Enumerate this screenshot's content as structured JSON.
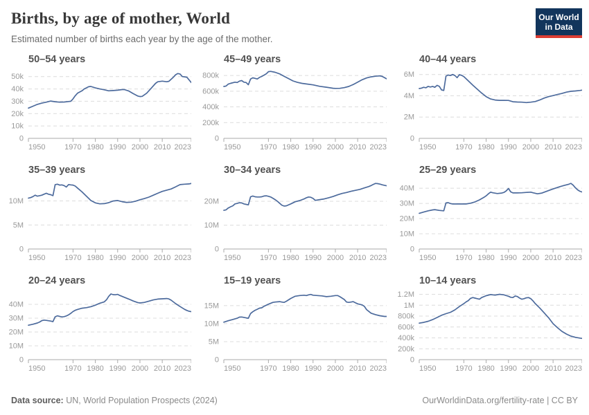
{
  "header": {
    "title": "Births, by age of mother, World",
    "subtitle": "Estimated number of births each year by the age of the mother."
  },
  "logo": {
    "line1": "Our World",
    "line2": "in Data"
  },
  "footer": {
    "source_label": "Data source:",
    "source_text": " UN, World Population Prospects (2024)",
    "url": "OurWorldinData.org/fertility-rate",
    "license": " | CC BY"
  },
  "colors": {
    "line": "#4c6a9c",
    "grid": "#dcdcdc",
    "axis": "#a9a9a9",
    "tick_text": "#999999",
    "logo_bg": "#12355c",
    "logo_bar": "#dc3d33"
  },
  "x_axis": {
    "range": [
      1950,
      2023
    ],
    "ticks": [
      {
        "v": 1950,
        "label": "1950",
        "anchor": "start"
      },
      {
        "v": 1970,
        "label": "1970",
        "anchor": "middle"
      },
      {
        "v": 1980,
        "label": "1980",
        "anchor": "middle"
      },
      {
        "v": 1990,
        "label": "1990",
        "anchor": "middle"
      },
      {
        "v": 2000,
        "label": "2000",
        "anchor": "middle"
      },
      {
        "v": 2010,
        "label": "2010",
        "anchor": "middle"
      },
      {
        "v": 2023,
        "label": "2023",
        "anchor": "end"
      }
    ]
  },
  "chart_data": [
    {
      "type": "line",
      "title": "50–54 years",
      "unit": "thousands",
      "ylim": [
        0,
        56
      ],
      "y_ticks": [
        {
          "v": 0,
          "label": "0"
        },
        {
          "v": 10,
          "label": "10k"
        },
        {
          "v": 20,
          "label": "20k"
        },
        {
          "v": 30,
          "label": "30k"
        },
        {
          "v": 40,
          "label": "40k"
        },
        {
          "v": 50,
          "label": "50k"
        }
      ],
      "x": [
        1950,
        1952,
        1954,
        1956,
        1958,
        1960,
        1962,
        1964,
        1966,
        1968,
        1969,
        1970,
        1971,
        1972,
        1974,
        1975,
        1977,
        1978,
        1980,
        1982,
        1984,
        1986,
        1988,
        1990,
        1992,
        1993,
        1995,
        1997,
        1999,
        2000,
        2001,
        2003,
        2005,
        2007,
        2008,
        2010,
        2012,
        2013,
        2015,
        2016,
        2017,
        2018,
        2019,
        2020,
        2021,
        2023
      ],
      "y": [
        24.5,
        26,
        27.5,
        28.5,
        29.3,
        30.2,
        29.6,
        29.3,
        29.4,
        29.8,
        30,
        32,
        34.5,
        36.5,
        38.5,
        40,
        41.8,
        42,
        40.8,
        40,
        39.3,
        38.5,
        38.7,
        39,
        39.5,
        39.5,
        38.3,
        36.2,
        34.3,
        33.8,
        34,
        36.5,
        40.5,
        44.5,
        45.8,
        46.3,
        45.8,
        46.2,
        49.5,
        51.5,
        52.5,
        52,
        50,
        49.8,
        49.5,
        45.2
      ]
    },
    {
      "type": "line",
      "title": "45–49 years",
      "unit": "thousands",
      "ylim": [
        0,
        880
      ],
      "y_ticks": [
        {
          "v": 0,
          "label": "0"
        },
        {
          "v": 200,
          "label": "200k"
        },
        {
          "v": 400,
          "label": "400k"
        },
        {
          "v": 600,
          "label": "600k"
        },
        {
          "v": 800,
          "label": "800k"
        }
      ],
      "x": [
        1950,
        1951,
        1952,
        1953,
        1955,
        1956,
        1957,
        1958,
        1959,
        1960,
        1961,
        1962,
        1963,
        1964,
        1965,
        1966,
        1967,
        1969,
        1970,
        1971,
        1973,
        1975,
        1977,
        1979,
        1981,
        1983,
        1985,
        1987,
        1990,
        1993,
        1996,
        1999,
        2000,
        2002,
        2004,
        2006,
        2008,
        2010,
        2012,
        2014,
        2016,
        2018,
        2020,
        2021,
        2023
      ],
      "y": [
        660,
        665,
        690,
        700,
        715,
        710,
        728,
        735,
        715,
        710,
        682,
        755,
        770,
        763,
        755,
        775,
        788,
        820,
        848,
        852,
        840,
        820,
        790,
        760,
        730,
        712,
        700,
        692,
        680,
        662,
        650,
        637,
        635,
        636,
        645,
        660,
        685,
        715,
        745,
        768,
        782,
        790,
        795,
        788,
        757
      ]
    },
    {
      "type": "line",
      "title": "40–44 years",
      "unit": "millions",
      "ylim": [
        0,
        6.5
      ],
      "y_ticks": [
        {
          "v": 0,
          "label": "0"
        },
        {
          "v": 2,
          "label": "2M"
        },
        {
          "v": 4,
          "label": "4M"
        },
        {
          "v": 6,
          "label": "6M"
        }
      ],
      "x": [
        1950,
        1951,
        1952,
        1953,
        1954,
        1955,
        1956,
        1957,
        1958,
        1959,
        1960,
        1961,
        1962,
        1963,
        1964,
        1965,
        1966,
        1967,
        1968,
        1969,
        1970,
        1972,
        1974,
        1976,
        1978,
        1980,
        1982,
        1984,
        1986,
        1988,
        1990,
        1992,
        1994,
        1996,
        1998,
        2000,
        2002,
        2004,
        2006,
        2008,
        2010,
        2012,
        2014,
        2016,
        2018,
        2020,
        2022,
        2023
      ],
      "y": [
        4.68,
        4.72,
        4.8,
        4.75,
        4.88,
        4.82,
        4.88,
        4.8,
        4.98,
        4.88,
        4.55,
        4.5,
        5.85,
        5.95,
        5.9,
        6.0,
        5.9,
        5.7,
        5.98,
        5.92,
        5.8,
        5.4,
        5.0,
        4.62,
        4.25,
        3.92,
        3.7,
        3.6,
        3.57,
        3.57,
        3.56,
        3.44,
        3.41,
        3.4,
        3.36,
        3.4,
        3.46,
        3.6,
        3.78,
        3.92,
        4.02,
        4.12,
        4.22,
        4.34,
        4.42,
        4.45,
        4.5,
        4.53
      ]
    },
    {
      "type": "line",
      "title": "35–39 years",
      "unit": "millions",
      "ylim": [
        0,
        14.4
      ],
      "y_ticks": [
        {
          "v": 0,
          "label": "0"
        },
        {
          "v": 5,
          "label": "5M"
        },
        {
          "v": 10,
          "label": "10M"
        }
      ],
      "x": [
        1950,
        1951,
        1952,
        1953,
        1954,
        1955,
        1956,
        1957,
        1958,
        1959,
        1960,
        1961,
        1962,
        1963,
        1964,
        1965,
        1966,
        1967,
        1968,
        1969,
        1970,
        1971,
        1972,
        1974,
        1976,
        1978,
        1980,
        1982,
        1984,
        1986,
        1988,
        1990,
        1992,
        1994,
        1996,
        1998,
        2000,
        2002,
        2004,
        2006,
        2008,
        2010,
        2012,
        2014,
        2016,
        2018,
        2020,
        2022,
        2023
      ],
      "y": [
        10.6,
        10.7,
        10.9,
        11.2,
        11.0,
        11.1,
        11.2,
        11.4,
        11.6,
        11.4,
        11.3,
        11.1,
        13.4,
        13.5,
        13.3,
        13.35,
        13.2,
        12.9,
        13.4,
        13.35,
        13.3,
        13.1,
        12.7,
        11.9,
        11.0,
        10.1,
        9.6,
        9.4,
        9.45,
        9.65,
        10.0,
        10.1,
        9.85,
        9.7,
        9.75,
        9.95,
        10.25,
        10.5,
        10.8,
        11.2,
        11.6,
        12.0,
        12.25,
        12.5,
        12.95,
        13.4,
        13.5,
        13.55,
        13.65
      ]
    },
    {
      "type": "line",
      "title": "30–34 years",
      "unit": "millions",
      "ylim": [
        0,
        29
      ],
      "y_ticks": [
        {
          "v": 0,
          "label": "0"
        },
        {
          "v": 10,
          "label": "10M"
        },
        {
          "v": 20,
          "label": "20M"
        }
      ],
      "x": [
        1950,
        1951,
        1952,
        1953,
        1954,
        1955,
        1956,
        1957,
        1958,
        1959,
        1960,
        1961,
        1962,
        1963,
        1964,
        1965,
        1966,
        1967,
        1968,
        1969,
        1970,
        1971,
        1972,
        1973,
        1974,
        1975,
        1976,
        1977,
        1978,
        1980,
        1982,
        1984,
        1986,
        1987,
        1988,
        1989,
        1990,
        1991,
        1993,
        1995,
        1997,
        1999,
        2001,
        2003,
        2005,
        2007,
        2009,
        2011,
        2013,
        2015,
        2016,
        2017,
        2018,
        2019,
        2020,
        2021,
        2022,
        2023
      ],
      "y": [
        16.2,
        16.4,
        17.2,
        17.7,
        18.1,
        18.9,
        19.1,
        19.4,
        19.3,
        18.9,
        18.7,
        18.5,
        21.9,
        22.2,
        21.9,
        21.8,
        21.8,
        21.9,
        22.2,
        22.3,
        22.1,
        21.8,
        21.3,
        20.7,
        20.0,
        19.2,
        18.4,
        18.0,
        18.1,
        18.9,
        19.8,
        20.3,
        21.0,
        21.5,
        21.8,
        21.7,
        21.2,
        20.4,
        20.7,
        21.0,
        21.5,
        22.0,
        22.7,
        23.3,
        23.7,
        24.2,
        24.6,
        25.0,
        25.6,
        26.2,
        26.6,
        27.1,
        27.5,
        27.4,
        27.2,
        26.9,
        26.7,
        26.5
      ]
    },
    {
      "type": "line",
      "title": "25–29 years",
      "unit": "millions",
      "ylim": [
        0,
        45.5
      ],
      "y_ticks": [
        {
          "v": 0,
          "label": "0"
        },
        {
          "v": 10,
          "label": "10M"
        },
        {
          "v": 20,
          "label": "20M"
        },
        {
          "v": 30,
          "label": "30M"
        },
        {
          "v": 40,
          "label": "40M"
        }
      ],
      "x": [
        1950,
        1952,
        1954,
        1956,
        1957,
        1959,
        1961,
        1962,
        1963,
        1964,
        1965,
        1967,
        1969,
        1971,
        1973,
        1975,
        1977,
        1979,
        1980,
        1981,
        1982,
        1983,
        1985,
        1987,
        1988,
        1989,
        1990,
        1991,
        1992,
        1994,
        1996,
        1998,
        2000,
        2001,
        2003,
        2005,
        2007,
        2009,
        2011,
        2013,
        2015,
        2017,
        2018,
        2019,
        2020,
        2021,
        2022,
        2023
      ],
      "y": [
        23.5,
        24.3,
        25.1,
        25.7,
        25.9,
        25.4,
        25.1,
        30.3,
        30.5,
        29.9,
        29.6,
        29.6,
        29.6,
        29.6,
        30.1,
        31.0,
        32.3,
        34.0,
        35.0,
        36.3,
        37.4,
        37.0,
        36.5,
        36.8,
        37.2,
        38.2,
        39.8,
        37.6,
        36.9,
        36.9,
        37.0,
        37.2,
        37.4,
        37.0,
        36.3,
        36.8,
        37.9,
        39.0,
        40.0,
        41.0,
        41.8,
        42.6,
        43.2,
        42.0,
        40.3,
        38.9,
        38.0,
        37.5
      ]
    },
    {
      "type": "line",
      "title": "20–24 years",
      "unit": "millions",
      "ylim": [
        0,
        50
      ],
      "y_ticks": [
        {
          "v": 0,
          "label": "0"
        },
        {
          "v": 10,
          "label": "10M"
        },
        {
          "v": 20,
          "label": "20M"
        },
        {
          "v": 30,
          "label": "30M"
        },
        {
          "v": 40,
          "label": "40M"
        }
      ],
      "x": [
        1950,
        1952,
        1954,
        1955,
        1956,
        1957,
        1958,
        1960,
        1961,
        1962,
        1963,
        1964,
        1965,
        1966,
        1967,
        1968,
        1969,
        1970,
        1971,
        1972,
        1974,
        1976,
        1978,
        1980,
        1982,
        1984,
        1985,
        1986,
        1987,
        1988,
        1989,
        1990,
        1991,
        1993,
        1995,
        1997,
        1999,
        2000,
        2002,
        2004,
        2006,
        2008,
        2010,
        2012,
        2013,
        2014,
        2016,
        2018,
        2020,
        2021,
        2022,
        2023
      ],
      "y": [
        24.9,
        25.6,
        26.5,
        27.2,
        28.2,
        28.6,
        28.4,
        27.9,
        27.5,
        31.0,
        31.7,
        31.3,
        30.9,
        31.1,
        31.6,
        32.4,
        33.5,
        34.8,
        35.7,
        36.3,
        37.2,
        37.6,
        38.3,
        39.4,
        40.8,
        41.8,
        43.3,
        45.8,
        47.5,
        47.0,
        46.9,
        47.2,
        46.4,
        45.1,
        43.8,
        42.4,
        41.3,
        41.0,
        41.4,
        42.3,
        43.2,
        43.8,
        44.0,
        44.2,
        43.9,
        43.0,
        40.5,
        38.4,
        36.4,
        35.6,
        35.0,
        34.7
      ]
    },
    {
      "type": "line",
      "title": "15–19 years",
      "unit": "millions",
      "ylim": [
        0,
        19.2
      ],
      "y_ticks": [
        {
          "v": 0,
          "label": "0"
        },
        {
          "v": 5,
          "label": "5M"
        },
        {
          "v": 10,
          "label": "10M"
        },
        {
          "v": 15,
          "label": "15M"
        }
      ],
      "x": [
        1950,
        1952,
        1954,
        1956,
        1957,
        1958,
        1960,
        1961,
        1962,
        1963,
        1964,
        1965,
        1966,
        1967,
        1968,
        1970,
        1972,
        1973,
        1975,
        1976,
        1977,
        1978,
        1980,
        1982,
        1984,
        1986,
        1987,
        1988,
        1989,
        1990,
        1992,
        1994,
        1996,
        1998,
        2000,
        2001,
        2002,
        2004,
        2005,
        2006,
        2007,
        2008,
        2009,
        2010,
        2012,
        2013,
        2014,
        2015,
        2016,
        2018,
        2020,
        2022,
        2023
      ],
      "y": [
        10.4,
        10.8,
        11.15,
        11.5,
        11.8,
        11.85,
        11.6,
        11.5,
        12.8,
        13.3,
        13.7,
        14.0,
        14.3,
        14.4,
        14.8,
        15.4,
        15.9,
        16.0,
        16.1,
        16.0,
        15.9,
        16.2,
        17.0,
        17.6,
        17.8,
        17.9,
        17.8,
        18.0,
        18.1,
        17.9,
        17.8,
        17.7,
        17.5,
        17.6,
        17.8,
        17.8,
        17.5,
        16.7,
        16.0,
        15.9,
        16.0,
        16.1,
        15.8,
        15.5,
        15.2,
        14.8,
        13.9,
        13.4,
        12.9,
        12.5,
        12.2,
        12.0,
        12.0
      ]
    },
    {
      "type": "line",
      "title": "10–14 years",
      "unit": "thousands",
      "ylim": [
        0,
        1270
      ],
      "y_ticks": [
        {
          "v": 0,
          "label": "0"
        },
        {
          "v": 200,
          "label": "200k"
        },
        {
          "v": 400,
          "label": "400k"
        },
        {
          "v": 600,
          "label": "600k"
        },
        {
          "v": 800,
          "label": "800k"
        },
        {
          "v": 1000,
          "label": "1M"
        },
        {
          "v": 1200,
          "label": "1.2M"
        }
      ],
      "x": [
        1950,
        1952,
        1954,
        1956,
        1958,
        1960,
        1962,
        1964,
        1966,
        1968,
        1970,
        1971,
        1972,
        1973,
        1974,
        1975,
        1976,
        1977,
        1978,
        1980,
        1982,
        1984,
        1986,
        1988,
        1990,
        1991,
        1992,
        1993,
        1994,
        1995,
        1996,
        1997,
        1998,
        1999,
        2000,
        2001,
        2002,
        2004,
        2006,
        2008,
        2010,
        2012,
        2014,
        2016,
        2018,
        2020,
        2022,
        2023
      ],
      "y": [
        670,
        685,
        705,
        735,
        775,
        815,
        845,
        870,
        915,
        975,
        1030,
        1060,
        1085,
        1125,
        1140,
        1130,
        1120,
        1110,
        1140,
        1175,
        1195,
        1185,
        1200,
        1190,
        1165,
        1145,
        1140,
        1170,
        1160,
        1130,
        1110,
        1120,
        1135,
        1140,
        1120,
        1080,
        1030,
        950,
        860,
        770,
        660,
        585,
        520,
        470,
        432,
        410,
        396,
        390
      ]
    }
  ]
}
